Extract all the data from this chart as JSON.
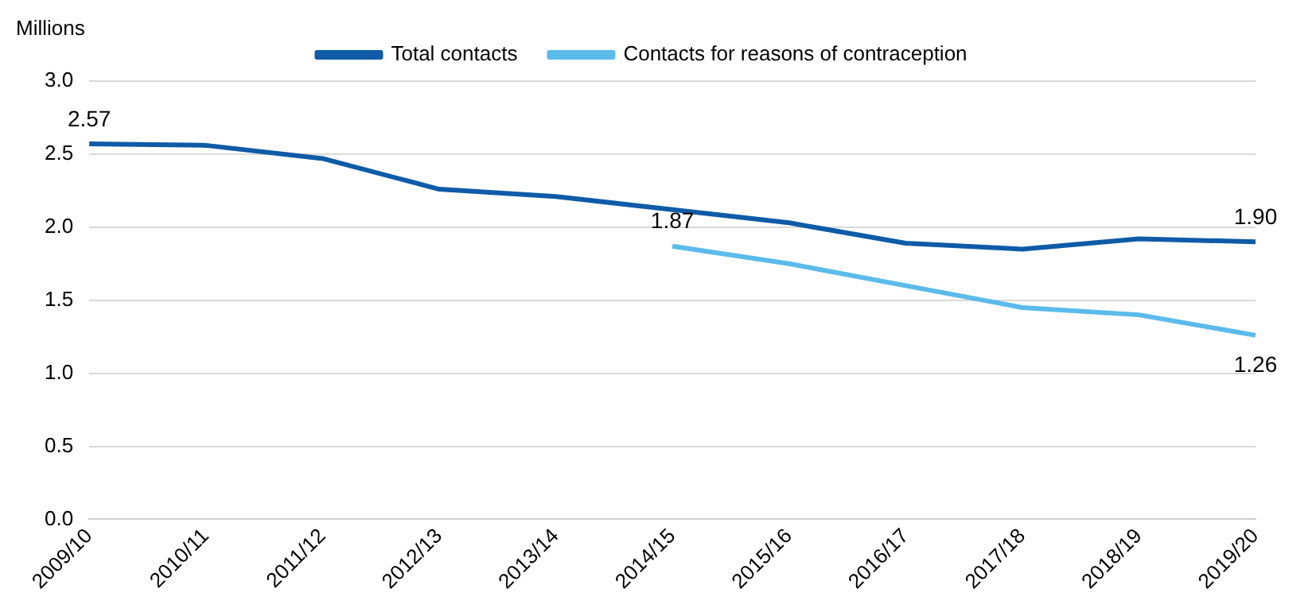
{
  "chart_data": {
    "type": "line",
    "ylabel": "Millions",
    "categories": [
      "2009/10",
      "2010/11",
      "2011/12",
      "2012/13",
      "2013/14",
      "2014/15",
      "2015/16",
      "2016/17",
      "2017/18",
      "2018/19",
      "2019/20"
    ],
    "series": [
      {
        "name": "Total contacts",
        "color": "#0f5ba7",
        "values": [
          2.57,
          2.56,
          2.47,
          2.26,
          2.21,
          2.12,
          2.03,
          1.89,
          1.85,
          1.92,
          1.9
        ],
        "value_labels": [
          "2.57",
          null,
          null,
          null,
          null,
          null,
          null,
          null,
          null,
          null,
          "1.90"
        ]
      },
      {
        "name": "Contacts for reasons of contraception",
        "color": "#5bbbea",
        "values": [
          null,
          null,
          null,
          null,
          null,
          1.87,
          1.75,
          1.6,
          1.45,
          1.4,
          1.26
        ],
        "value_labels": [
          null,
          null,
          null,
          null,
          null,
          "1.87",
          null,
          null,
          null,
          null,
          "1.26"
        ]
      }
    ],
    "ylim": [
      0,
      3
    ],
    "yticks": [
      {
        "value": 0,
        "label": "0.0"
      },
      {
        "value": 0.5,
        "label": "0.5"
      },
      {
        "value": 1,
        "label": "1.0"
      },
      {
        "value": 1.5,
        "label": "1.5"
      },
      {
        "value": 2,
        "label": "2.0"
      },
      {
        "value": 2.5,
        "label": "2.5"
      },
      {
        "value": 3,
        "label": "3.0"
      }
    ],
    "grid": "y",
    "legend": "top",
    "marker": "none",
    "line_style": "solid"
  }
}
